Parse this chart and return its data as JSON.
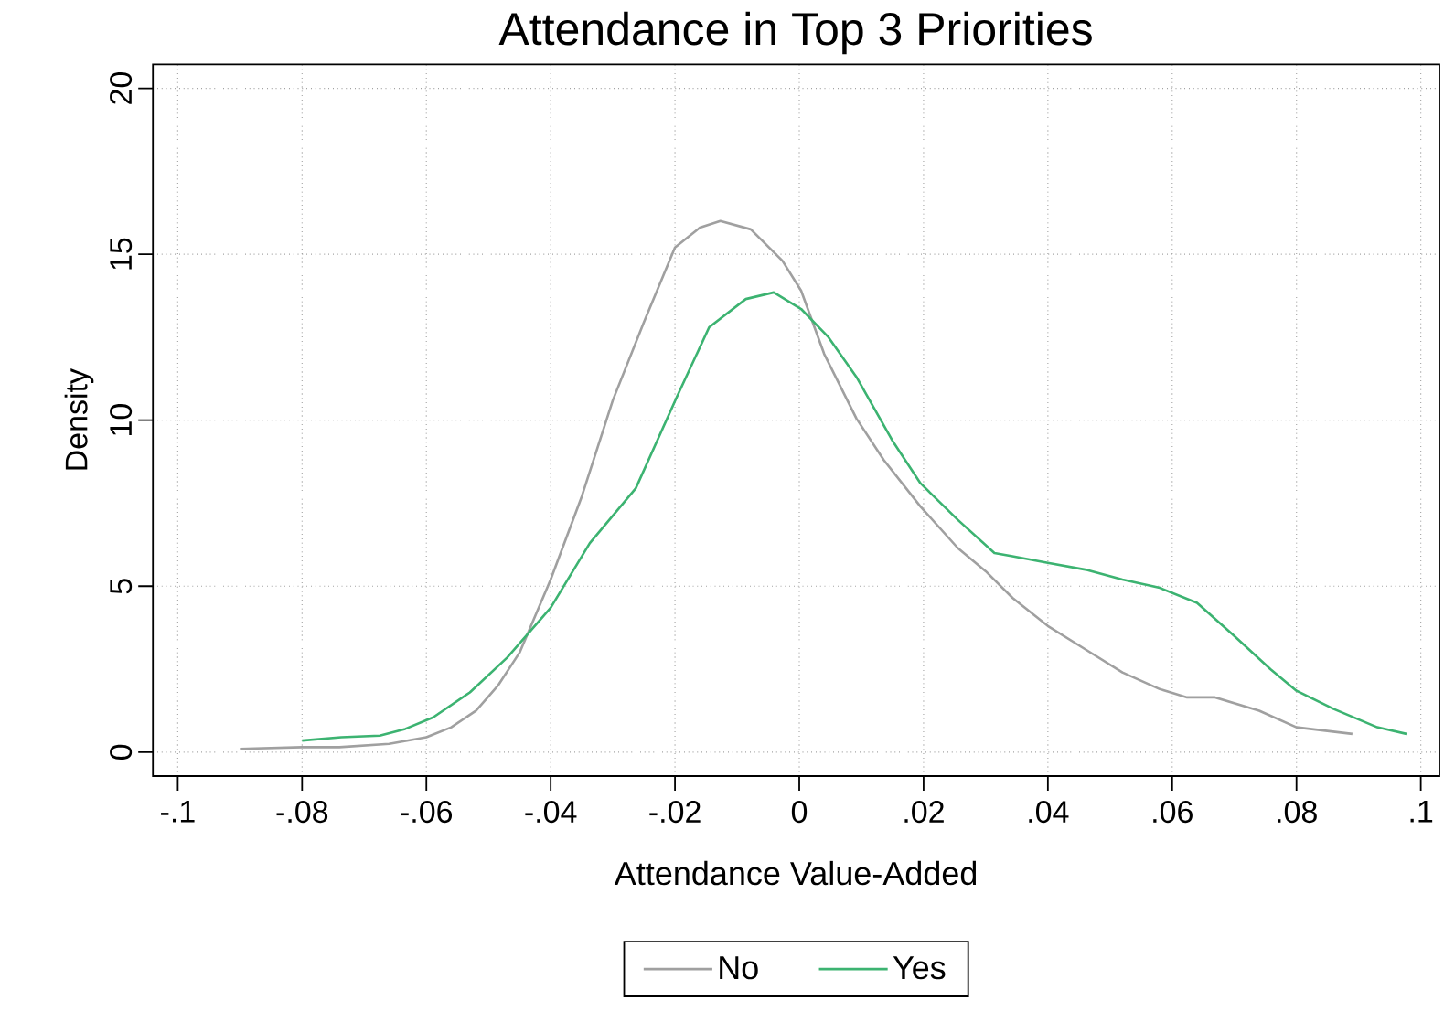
{
  "chart_data": {
    "type": "line",
    "title": "Attendance in Top 3 Priorities",
    "xlabel": "Attendance Value-Added",
    "ylabel": "Density",
    "xlim": [
      -0.104,
      0.103
    ],
    "ylim": [
      -0.72,
      20.72
    ],
    "xticks": [
      {
        "value": -0.1,
        "label": "-.1"
      },
      {
        "value": -0.08,
        "label": "-.08"
      },
      {
        "value": -0.06,
        "label": "-.06"
      },
      {
        "value": -0.04,
        "label": "-.04"
      },
      {
        "value": -0.02,
        "label": "-.02"
      },
      0,
      {
        "value": 0.02,
        "label": ".02"
      },
      {
        "value": 0.04,
        "label": ".04"
      },
      {
        "value": 0.06,
        "label": ".06"
      },
      {
        "value": 0.08,
        "label": ".08"
      },
      {
        "value": 0.1,
        "label": ".1"
      }
    ],
    "yticks": [
      0,
      5,
      10,
      15,
      20
    ],
    "grid": true,
    "legend": "bottom",
    "line_style": "solid",
    "marker": "none",
    "series": [
      {
        "name": "No",
        "color": "#a0a0a0",
        "x": [
          -0.09,
          -0.08,
          -0.074,
          -0.066,
          -0.06,
          -0.056,
          -0.052,
          -0.0485,
          -0.045,
          -0.04,
          -0.035,
          -0.03,
          -0.025,
          -0.02,
          -0.016,
          -0.0127,
          -0.0078,
          -0.0027,
          0.0003,
          0.004,
          0.0092,
          0.0136,
          0.0195,
          0.0255,
          0.03,
          0.0343,
          0.04,
          0.046,
          0.052,
          0.058,
          0.0624,
          0.0669,
          0.074,
          0.08,
          0.089
        ],
        "values": [
          0.1,
          0.15,
          0.15,
          0.25,
          0.45,
          0.75,
          1.25,
          2.0,
          3.0,
          5.2,
          7.7,
          10.6,
          12.95,
          15.2,
          15.8,
          16.0,
          15.75,
          14.8,
          13.9,
          12.0,
          10.05,
          8.8,
          7.4,
          6.15,
          5.45,
          4.65,
          3.8,
          3.1,
          2.4,
          1.9,
          1.65,
          1.65,
          1.25,
          0.75,
          0.55
        ]
      },
      {
        "name": "Yes",
        "color": "#3cb371",
        "x": [
          -0.08,
          -0.0737,
          -0.0675,
          -0.0634,
          -0.0589,
          -0.053,
          -0.047,
          -0.04,
          -0.0337,
          -0.0263,
          -0.0197,
          -0.0145,
          -0.0086,
          -0.0041,
          0.0003,
          0.0047,
          0.0092,
          0.0151,
          0.0195,
          0.0255,
          0.0314,
          0.0343,
          0.04,
          0.046,
          0.052,
          0.058,
          0.064,
          0.07,
          0.0758,
          0.08,
          0.086,
          0.093,
          0.0977
        ],
        "values": [
          0.35,
          0.45,
          0.5,
          0.7,
          1.05,
          1.8,
          2.85,
          4.35,
          6.3,
          7.95,
          10.7,
          12.8,
          13.65,
          13.85,
          13.35,
          12.5,
          11.3,
          9.35,
          8.1,
          7.0,
          6.0,
          5.9,
          5.7,
          5.5,
          5.2,
          4.95,
          4.5,
          3.5,
          2.5,
          1.85,
          1.3,
          0.75,
          0.55
        ]
      }
    ]
  }
}
